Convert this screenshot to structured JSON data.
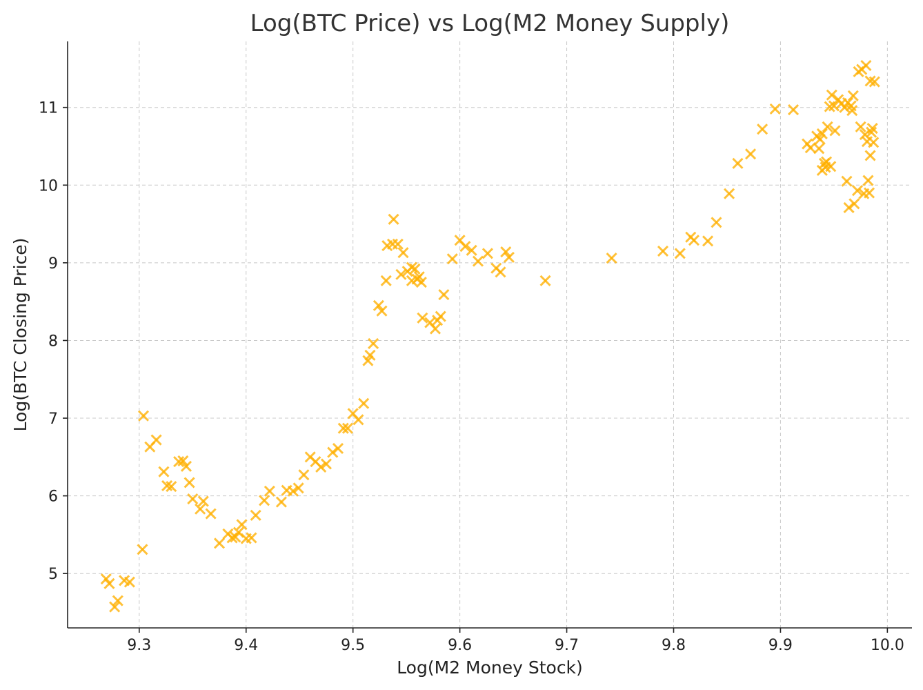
{
  "chart_data": {
    "type": "scatter",
    "title": "Log(BTC Price) vs Log(M2 Money Supply)",
    "xlabel": "Log(M2 Money Stock)",
    "ylabel": "Log(BTC Closing Price)",
    "xlim": [
      9.233,
      10.023
    ],
    "ylim": [
      4.3,
      11.85
    ],
    "xticks": [
      9.3,
      9.4,
      9.5,
      9.6,
      9.7,
      9.8,
      9.9,
      10.0
    ],
    "xtick_labels": [
      "9.3",
      "9.4",
      "9.5",
      "9.6",
      "9.7",
      "9.8",
      "9.9",
      "10.0"
    ],
    "yticks": [
      5,
      6,
      7,
      8,
      9,
      10,
      11
    ],
    "ytick_labels": [
      "5",
      "6",
      "7",
      "8",
      "9",
      "10",
      "11"
    ],
    "grid": true,
    "marker": "x",
    "color": "#FFB000",
    "points": [
      [
        9.269,
        4.93
      ],
      [
        9.272,
        4.87
      ],
      [
        9.277,
        4.57
      ],
      [
        9.28,
        4.65
      ],
      [
        9.286,
        4.91
      ],
      [
        9.291,
        4.89
      ],
      [
        9.303,
        5.31
      ],
      [
        9.304,
        7.03
      ],
      [
        9.31,
        6.63
      ],
      [
        9.316,
        6.72
      ],
      [
        9.323,
        6.31
      ],
      [
        9.326,
        6.13
      ],
      [
        9.33,
        6.12
      ],
      [
        9.337,
        6.44
      ],
      [
        9.341,
        6.45
      ],
      [
        9.344,
        6.38
      ],
      [
        9.347,
        6.17
      ],
      [
        9.35,
        5.96
      ],
      [
        9.357,
        5.83
      ],
      [
        9.36,
        5.93
      ],
      [
        9.367,
        5.77
      ],
      [
        9.375,
        5.39
      ],
      [
        9.383,
        5.51
      ],
      [
        9.387,
        5.46
      ],
      [
        9.39,
        5.47
      ],
      [
        9.393,
        5.53
      ],
      [
        9.396,
        5.63
      ],
      [
        9.4,
        5.45
      ],
      [
        9.405,
        5.46
      ],
      [
        9.409,
        5.75
      ],
      [
        9.417,
        5.94
      ],
      [
        9.422,
        6.06
      ],
      [
        9.433,
        5.92
      ],
      [
        9.438,
        6.07
      ],
      [
        9.444,
        6.06
      ],
      [
        9.449,
        6.1
      ],
      [
        9.454,
        6.27
      ],
      [
        9.46,
        6.5
      ],
      [
        9.465,
        6.44
      ],
      [
        9.47,
        6.37
      ],
      [
        9.475,
        6.41
      ],
      [
        9.481,
        6.56
      ],
      [
        9.486,
        6.61
      ],
      [
        9.491,
        6.87
      ],
      [
        9.495,
        6.87
      ],
      [
        9.5,
        7.06
      ],
      [
        9.505,
        6.98
      ],
      [
        9.51,
        7.19
      ],
      [
        9.514,
        7.74
      ],
      [
        9.516,
        7.81
      ],
      [
        9.519,
        7.96
      ],
      [
        9.524,
        8.45
      ],
      [
        9.527,
        8.38
      ],
      [
        9.531,
        8.77
      ],
      [
        9.532,
        9.22
      ],
      [
        9.537,
        9.24
      ],
      [
        9.538,
        9.56
      ],
      [
        9.542,
        9.24
      ],
      [
        9.545,
        8.85
      ],
      [
        9.547,
        9.13
      ],
      [
        9.551,
        8.89
      ],
      [
        9.555,
        8.94
      ],
      [
        9.555,
        8.77
      ],
      [
        9.558,
        8.92
      ],
      [
        9.56,
        8.79
      ],
      [
        9.562,
        8.82
      ],
      [
        9.564,
        8.75
      ],
      [
        9.565,
        8.29
      ],
      [
        9.572,
        8.23
      ],
      [
        9.577,
        8.15
      ],
      [
        9.579,
        8.26
      ],
      [
        9.582,
        8.31
      ],
      [
        9.585,
        8.59
      ],
      [
        9.593,
        9.05
      ],
      [
        9.6,
        9.29
      ],
      [
        9.605,
        9.21
      ],
      [
        9.611,
        9.16
      ],
      [
        9.617,
        9.02
      ],
      [
        9.626,
        9.12
      ],
      [
        9.634,
        8.93
      ],
      [
        9.638,
        8.88
      ],
      [
        9.643,
        9.14
      ],
      [
        9.646,
        9.07
      ],
      [
        9.68,
        8.77
      ],
      [
        9.742,
        9.06
      ],
      [
        9.79,
        9.15
      ],
      [
        9.806,
        9.12
      ],
      [
        9.816,
        9.33
      ],
      [
        9.819,
        9.29
      ],
      [
        9.832,
        9.28
      ],
      [
        9.84,
        9.52
      ],
      [
        9.852,
        9.89
      ],
      [
        9.86,
        10.28
      ],
      [
        9.872,
        10.4
      ],
      [
        9.883,
        10.72
      ],
      [
        9.895,
        10.98
      ],
      [
        9.912,
        10.97
      ],
      [
        9.925,
        10.53
      ],
      [
        9.928,
        10.48
      ],
      [
        9.934,
        10.63
      ],
      [
        9.936,
        10.47
      ],
      [
        9.937,
        10.59
      ],
      [
        9.939,
        10.66
      ],
      [
        9.939,
        10.19
      ],
      [
        9.941,
        10.28
      ],
      [
        9.942,
        10.23
      ],
      [
        9.943,
        10.3
      ],
      [
        9.944,
        10.75
      ],
      [
        9.946,
        11.01
      ],
      [
        9.947,
        10.24
      ],
      [
        9.948,
        11.16
      ],
      [
        9.95,
        11.02
      ],
      [
        9.951,
        10.7
      ],
      [
        9.954,
        11.1
      ],
      [
        9.957,
        11.05
      ],
      [
        9.96,
        11.0
      ],
      [
        9.962,
        10.05
      ],
      [
        9.963,
        11.06
      ],
      [
        9.964,
        9.71
      ],
      [
        9.966,
        11.02
      ],
      [
        9.967,
        10.96
      ],
      [
        9.968,
        11.15
      ],
      [
        9.969,
        9.76
      ],
      [
        9.972,
        9.93
      ],
      [
        9.973,
        11.46
      ],
      [
        9.975,
        10.75
      ],
      [
        9.976,
        11.49
      ],
      [
        9.978,
        9.89
      ],
      [
        9.979,
        10.65
      ],
      [
        9.98,
        11.54
      ],
      [
        9.981,
        10.56
      ],
      [
        9.982,
        10.06
      ],
      [
        9.983,
        9.9
      ],
      [
        9.984,
        10.38
      ],
      [
        9.984,
        11.34
      ],
      [
        9.985,
        10.68
      ],
      [
        9.986,
        10.73
      ],
      [
        9.987,
        10.55
      ],
      [
        9.988,
        11.33
      ]
    ]
  }
}
